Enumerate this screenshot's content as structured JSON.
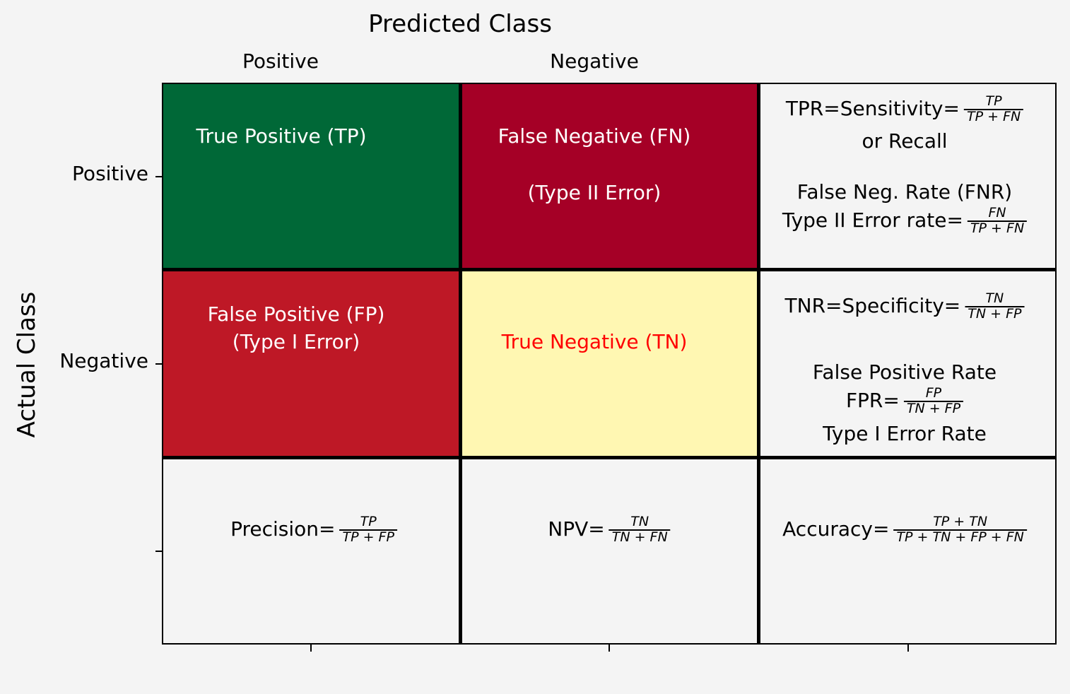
{
  "title": "Predicted Class",
  "y_axis_title": "Actual Class",
  "columns": [
    "Positive",
    "Negative"
  ],
  "rows": [
    "Positive",
    "Negative"
  ],
  "colors": {
    "tp": "#006837",
    "fn": "#a50026",
    "fp": "#be1826",
    "tn": "#fff7b2",
    "neutral": "#f4f4f4",
    "tn_text": "#ff0000"
  },
  "cells": {
    "tp": "True Positive (TP)",
    "fn_line1": "False Negative (FN)",
    "fn_line2": "(Type II Error)",
    "fp_line1": "False Positive (FP)",
    "fp_line2": "(Type I Error)",
    "tn": "True Negative (TN)"
  },
  "metrics": {
    "tpr_label": "TPR=Sensitivity=",
    "tpr_num": "TP",
    "tpr_den": "TP + FN",
    "tpr_alt": "or Recall",
    "fnr_line1": "False Neg. Rate (FNR)",
    "fnr_label": "Type II Error rate=",
    "fnr_num": "FN",
    "fnr_den": "TP + FN",
    "tnr_label": "TNR=Specificity=",
    "tnr_num": "TN",
    "tnr_den": "TN + FP",
    "fpr_line1": "False Positive Rate",
    "fpr_label": "FPR=",
    "fpr_num": "FP",
    "fpr_den": "TN + FP",
    "fpr_line3": "Type I Error Rate",
    "precision_label": "Precision=",
    "precision_num": "TP",
    "precision_den": "TP + FP",
    "npv_label": "NPV=",
    "npv_num": "TN",
    "npv_den": "TN + FN",
    "accuracy_label": "Accuracy=",
    "accuracy_num": "TP + TN",
    "accuracy_den": "TP + TN + FP + FN"
  }
}
